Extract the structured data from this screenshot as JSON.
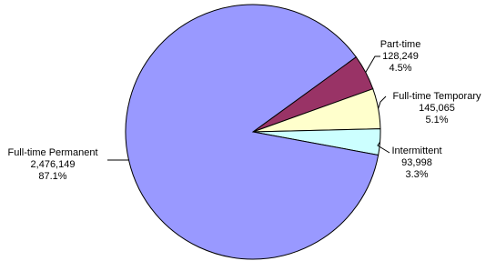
{
  "chart_data": {
    "type": "pie",
    "categories": [
      "Part-time",
      "Full-time Temporary",
      "Intermittent",
      "Full-time Permanent"
    ],
    "values": [
      128249,
      145065,
      93998,
      2476149
    ],
    "value_labels": [
      "128,249",
      "145,065",
      "93,998",
      "2,476,149"
    ],
    "percent_labels": [
      "4.5%",
      "5.1%",
      "3.3%",
      "87.1%"
    ],
    "colors": [
      "#993366",
      "#ffffcc",
      "#ccffff",
      "#9999ff"
    ]
  }
}
